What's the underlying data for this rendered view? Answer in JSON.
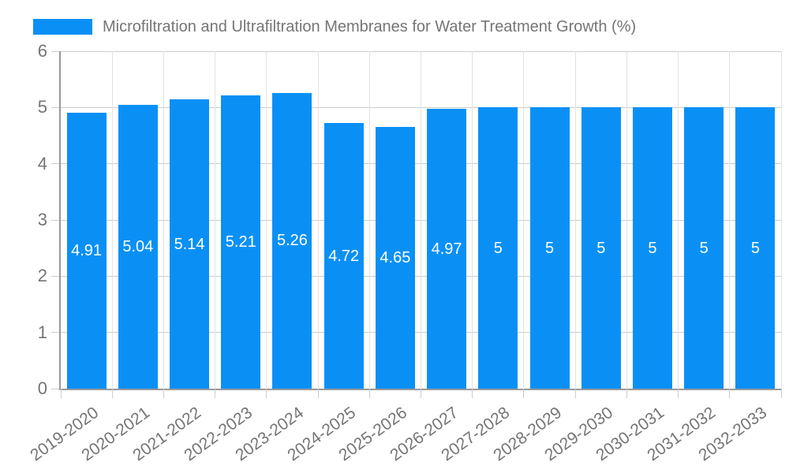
{
  "legend": {
    "label": "Microfiltration and Ultrafiltration Membranes for Water Treatment Growth (%)"
  },
  "chart_data": {
    "type": "bar",
    "title": "Microfiltration and Ultrafiltration Membranes for Water Treatment Growth (%)",
    "legend_position": "top-left",
    "categories": [
      "2019-2020",
      "2020-2021",
      "2021-2022",
      "2022-2023",
      "2023-2024",
      "2024-2025",
      "2025-2026",
      "2026-2027",
      "2027-2028",
      "2028-2029",
      "2029-2030",
      "2030-2031",
      "2031-2032",
      "2032-2033"
    ],
    "values": [
      4.91,
      5.04,
      5.14,
      5.21,
      5.26,
      4.72,
      4.65,
      4.97,
      5,
      5,
      5,
      5,
      5,
      5
    ],
    "value_labels": [
      "4.91",
      "5.04",
      "5.14",
      "5.21",
      "5.26",
      "4.72",
      "4.65",
      "4.97",
      "5",
      "5",
      "5",
      "5",
      "5",
      "5"
    ],
    "xlabel": "",
    "ylabel": "",
    "ylim": [
      0,
      6
    ],
    "ytick_labels": [
      "0",
      "1",
      "2",
      "3",
      "4",
      "5",
      "6"
    ],
    "grid": true,
    "colors": {
      "bar": "#0a90f5",
      "bar_value_text": "#ffffff",
      "axis_line": "#999999",
      "hgrid": "#cccccc",
      "vgrid": "#e2e2e2",
      "tick": "#cccccc",
      "label_text": "#757575"
    }
  }
}
